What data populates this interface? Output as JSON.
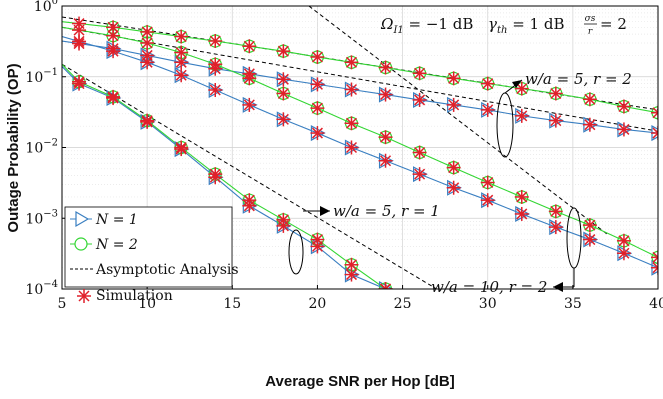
{
  "chart_data": {
    "type": "line",
    "title": "",
    "xlabel": "Average SNR per Hop  [dB]",
    "ylabel": "Outage Probability (OP)",
    "xlim": [
      5,
      40
    ],
    "ylim": [
      0.0001,
      1
    ],
    "yscale": "log",
    "grid": true,
    "x_ticks": [
      "5",
      "10",
      "15",
      "20",
      "25",
      "30",
      "35",
      "40"
    ],
    "y_ticks": [
      {
        "base": "10",
        "exp": "0",
        "value": 1
      },
      {
        "base": "10",
        "exp": "−1",
        "value": 0.1
      },
      {
        "base": "10",
        "exp": "−2",
        "value": 0.01
      },
      {
        "base": "10",
        "exp": "−3",
        "value": 0.001
      },
      {
        "base": "10",
        "exp": "−4",
        "value": 0.0001
      }
    ],
    "param_text": {
      "omega": "Ω",
      "omega_sub": "I1",
      "omega_val": " = −1 dB",
      "gamma": "γ",
      "gamma_sub": "th",
      "gamma_val": " = 1 dB",
      "ratio_num": "σs",
      "ratio_den": "r",
      "ratio_val": " = 2"
    },
    "legend": {
      "placement": "bottom-left",
      "items": [
        {
          "label": "N = 1",
          "marker": "triangle-right",
          "color": "#3a7fc1"
        },
        {
          "label": "N = 2",
          "marker": "circle",
          "color": "#33d633"
        },
        {
          "label": "Asymptotic Analysis",
          "marker": "dashed",
          "color": "#000000"
        },
        {
          "label": "Simulation",
          "marker": "asterisk",
          "color": "#e0202a"
        }
      ]
    },
    "annotations": [
      {
        "text": "w/a = 5, r = 2",
        "x": 34.5,
        "y": 0.09
      },
      {
        "text": "w/a = 5, r = 1",
        "x": 21.5,
        "y": 0.0022
      },
      {
        "text": "w/a = 10, r = 2",
        "x": 27.0,
        "y": 0.00018
      }
    ],
    "sim_x": [
      6,
      8,
      10,
      12,
      14,
      16,
      18,
      20,
      22,
      24,
      26,
      28,
      30,
      32,
      34,
      36,
      38,
      40
    ],
    "series": [
      {
        "group": "w/a=5, r=2",
        "N": 1,
        "color": "#3a7fc1",
        "marker": "triangle-right",
        "x": [
          5,
          8,
          10,
          12,
          14,
          16,
          18,
          20,
          22,
          24,
          26,
          28,
          30,
          32,
          34,
          36,
          38,
          40
        ],
        "y": [
          0.32,
          0.25,
          0.2,
          0.16,
          0.13,
          0.11,
          0.092,
          0.078,
          0.066,
          0.056,
          0.047,
          0.04,
          0.034,
          0.028,
          0.024,
          0.021,
          0.018,
          0.016
        ]
      },
      {
        "group": "w/a=5, r=2",
        "N": 2,
        "color": "#33d633",
        "marker": "circle",
        "x": [
          5,
          8,
          10,
          12,
          14,
          16,
          18,
          20,
          22,
          24,
          26,
          28,
          30,
          32,
          34,
          36,
          38,
          40
        ],
        "y": [
          0.6,
          0.5,
          0.43,
          0.37,
          0.32,
          0.27,
          0.23,
          0.19,
          0.16,
          0.135,
          0.112,
          0.095,
          0.08,
          0.068,
          0.058,
          0.048,
          0.038,
          0.031
        ]
      },
      {
        "group": "w/a=10, r=2",
        "N": 1,
        "color": "#3a7fc1",
        "marker": "triangle-right",
        "x": [
          5,
          8,
          10,
          12,
          14,
          16,
          18,
          20,
          22,
          24,
          26,
          28,
          30,
          32,
          34,
          36,
          38,
          40
        ],
        "y": [
          0.37,
          0.23,
          0.16,
          0.105,
          0.065,
          0.04,
          0.025,
          0.016,
          0.01,
          0.0065,
          0.0042,
          0.0027,
          0.0018,
          0.00115,
          0.00075,
          0.0005,
          0.00032,
          0.0002
        ]
      },
      {
        "group": "w/a=10, r=2",
        "N": 2,
        "color": "#33d633",
        "marker": "circle",
        "x": [
          5,
          8,
          10,
          12,
          14,
          16,
          18,
          20,
          22,
          24,
          26,
          28,
          30,
          32,
          34,
          36,
          38,
          40
        ],
        "y": [
          0.5,
          0.38,
          0.3,
          0.22,
          0.15,
          0.095,
          0.058,
          0.036,
          0.022,
          0.014,
          0.0085,
          0.0052,
          0.0032,
          0.002,
          0.00125,
          0.0008,
          0.00048,
          0.00028
        ]
      },
      {
        "group": "w/a=5, r=1",
        "N": 1,
        "color": "#3a7fc1",
        "marker": "triangle-right",
        "x": [
          5,
          6,
          8,
          10,
          12,
          14,
          16,
          18,
          20,
          22,
          24
        ],
        "y": [
          0.14,
          0.08,
          0.05,
          0.023,
          0.0095,
          0.0038,
          0.0015,
          0.00078,
          0.0004,
          0.00016,
          0.0001
        ]
      },
      {
        "group": "w/a=5, r=1",
        "N": 2,
        "color": "#33d633",
        "marker": "circle",
        "x": [
          5,
          6,
          8,
          10,
          12,
          14,
          16,
          18,
          20,
          22,
          24
        ],
        "y": [
          0.15,
          0.085,
          0.052,
          0.024,
          0.01,
          0.0042,
          0.0018,
          0.00095,
          0.0005,
          0.00022,
          0.0001
        ]
      }
    ],
    "asymptotes": [
      {
        "x": [
          5,
          40
        ],
        "y": [
          0.5,
          0.017
        ]
      },
      {
        "x": [
          5,
          40
        ],
        "y": [
          0.7,
          0.034
        ]
      },
      {
        "x": [
          19.5,
          37
        ],
        "y": [
          1.0,
          0.0006
        ]
      },
      {
        "x": [
          5,
          27
        ],
        "y": [
          0.15,
          0.0001
        ]
      }
    ]
  }
}
